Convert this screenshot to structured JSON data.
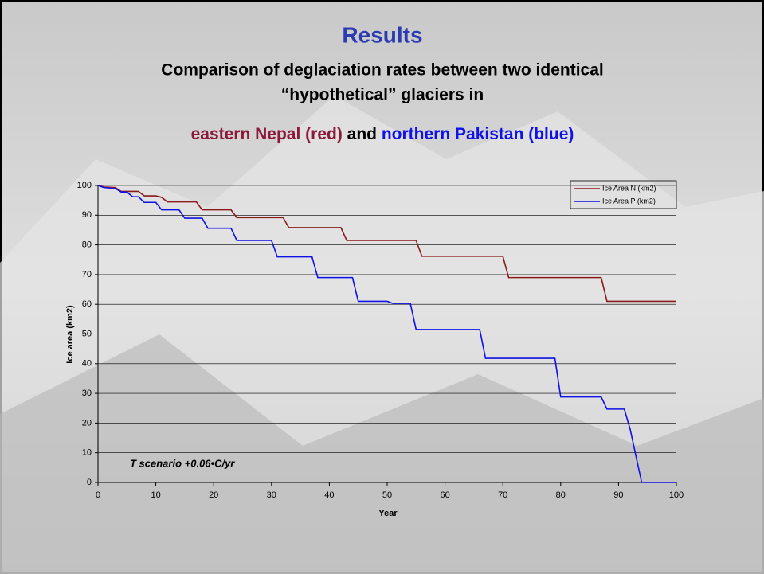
{
  "chart_data": {
    "type": "line",
    "title": "Results",
    "subtitle": [
      "Comparison of deglaciation rates between two identical",
      "“hypothetical” glaciers in"
    ],
    "subtitle_colored": [
      "eastern Nepal (red)",
      "and",
      "northern Pakistan (blue)"
    ],
    "x_label": "Year",
    "y_label": "Ice area (km2)",
    "annotation": "T scenario +0.06•C/yr",
    "xlim": [
      0,
      100
    ],
    "xticks": [
      0,
      10,
      20,
      30,
      40,
      50,
      60,
      70,
      80,
      90,
      100
    ],
    "ylim": [
      0,
      100
    ],
    "yticks": [
      0,
      10,
      20,
      30,
      40,
      50,
      60,
      70,
      80,
      90,
      100
    ],
    "grid": true,
    "legend": "top-right",
    "series": [
      {
        "name": "Ice Area N (km2)",
        "color": "#8b1a1a",
        "x": [
          0,
          1,
          3,
          4,
          7,
          8,
          10,
          11,
          12,
          17,
          18,
          23,
          24,
          32,
          33,
          42,
          43,
          55,
          56,
          70,
          71,
          87,
          88,
          100
        ],
        "values": [
          100,
          99.5,
          99.3,
          98,
          98,
          96.5,
          96.5,
          96,
          94.5,
          94.5,
          91.8,
          91.8,
          89.2,
          89.2,
          85.8,
          85.8,
          81.5,
          81.5,
          76.2,
          76.2,
          69,
          69,
          61,
          61
        ]
      },
      {
        "name": "Ice Area P (km2)",
        "color": "#1010e8",
        "x": [
          0,
          1,
          3,
          4,
          5,
          6,
          7,
          8,
          10,
          11,
          14,
          15,
          18,
          19,
          23,
          24,
          30,
          31,
          37,
          38,
          44,
          45,
          50,
          51,
          54,
          55,
          66,
          67,
          79,
          80,
          87,
          88,
          91,
          92,
          94,
          100
        ],
        "values": [
          100,
          99.3,
          99,
          97.8,
          97.8,
          96.2,
          96.2,
          94.3,
          94.3,
          91.8,
          91.8,
          89,
          89,
          85.6,
          85.6,
          81.5,
          81.5,
          76,
          76,
          69,
          69,
          61,
          61,
          60.3,
          60.3,
          51.5,
          51.5,
          41.8,
          41.8,
          28.8,
          28.8,
          24.7,
          24.7,
          18,
          0,
          0
        ]
      }
    ]
  }
}
